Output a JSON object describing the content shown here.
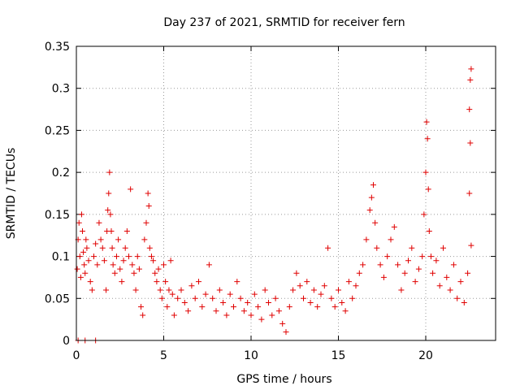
{
  "chart_data": {
    "type": "scatter",
    "title": "Day 237 of 2021, SRMTID for receiver fern",
    "xlabel": "GPS time / hours",
    "ylabel": "SRMTID / TECUs",
    "xlim": [
      0,
      24
    ],
    "ylim": [
      0,
      0.35
    ],
    "xticks": [
      0,
      5,
      10,
      15,
      20
    ],
    "xtick_labels": [
      "0",
      "5",
      "10",
      "15",
      "20"
    ],
    "yticks": [
      0,
      0.05,
      0.1,
      0.15,
      0.2,
      0.25,
      0.3,
      0.35
    ],
    "ytick_labels": [
      "0",
      "0.05",
      "0.1",
      "0.15",
      "0.2",
      "0.25",
      "0.3",
      "0.35"
    ],
    "grid": true,
    "marker": "plus",
    "color": "#e00000",
    "series": [
      {
        "name": "SRMTID",
        "points": [
          [
            0.1,
            0.0
          ],
          [
            0.5,
            0.0
          ],
          [
            1.1,
            0.0
          ],
          [
            0.05,
            0.085
          ],
          [
            0.1,
            0.12
          ],
          [
            0.15,
            0.14
          ],
          [
            0.2,
            0.1
          ],
          [
            0.25,
            0.075
          ],
          [
            0.3,
            0.15
          ],
          [
            0.35,
            0.13
          ],
          [
            0.4,
            0.105
          ],
          [
            0.45,
            0.09
          ],
          [
            0.5,
            0.08
          ],
          [
            0.55,
            0.12
          ],
          [
            0.6,
            0.11
          ],
          [
            0.7,
            0.095
          ],
          [
            0.8,
            0.07
          ],
          [
            0.9,
            0.06
          ],
          [
            1.0,
            0.1
          ],
          [
            1.1,
            0.115
          ],
          [
            1.2,
            0.09
          ],
          [
            1.3,
            0.14
          ],
          [
            1.4,
            0.12
          ],
          [
            1.5,
            0.11
          ],
          [
            1.6,
            0.095
          ],
          [
            1.7,
            0.06
          ],
          [
            1.75,
            0.13
          ],
          [
            1.8,
            0.155
          ],
          [
            1.85,
            0.175
          ],
          [
            1.9,
            0.2
          ],
          [
            1.95,
            0.15
          ],
          [
            2.0,
            0.13
          ],
          [
            2.05,
            0.11
          ],
          [
            2.1,
            0.09
          ],
          [
            2.2,
            0.08
          ],
          [
            2.3,
            0.1
          ],
          [
            2.4,
            0.12
          ],
          [
            2.5,
            0.085
          ],
          [
            2.6,
            0.07
          ],
          [
            2.7,
            0.095
          ],
          [
            2.8,
            0.11
          ],
          [
            2.9,
            0.13
          ],
          [
            3.0,
            0.1
          ],
          [
            3.1,
            0.18
          ],
          [
            3.2,
            0.09
          ],
          [
            3.3,
            0.08
          ],
          [
            3.4,
            0.06
          ],
          [
            3.5,
            0.1
          ],
          [
            3.6,
            0.085
          ],
          [
            3.7,
            0.04
          ],
          [
            3.8,
            0.03
          ],
          [
            3.9,
            0.12
          ],
          [
            4.0,
            0.14
          ],
          [
            4.1,
            0.175
          ],
          [
            4.15,
            0.16
          ],
          [
            4.2,
            0.11
          ],
          [
            4.3,
            0.1
          ],
          [
            4.4,
            0.095
          ],
          [
            4.5,
            0.08
          ],
          [
            4.6,
            0.07
          ],
          [
            4.7,
            0.085
          ],
          [
            4.8,
            0.06
          ],
          [
            4.9,
            0.05
          ],
          [
            5.0,
            0.09
          ],
          [
            5.1,
            0.07
          ],
          [
            5.2,
            0.04
          ],
          [
            5.3,
            0.06
          ],
          [
            5.4,
            0.095
          ],
          [
            5.5,
            0.055
          ],
          [
            5.6,
            0.03
          ],
          [
            5.8,
            0.05
          ],
          [
            6.0,
            0.06
          ],
          [
            6.2,
            0.045
          ],
          [
            6.4,
            0.035
          ],
          [
            6.6,
            0.065
          ],
          [
            6.8,
            0.05
          ],
          [
            7.0,
            0.07
          ],
          [
            7.2,
            0.04
          ],
          [
            7.4,
            0.055
          ],
          [
            7.6,
            0.09
          ],
          [
            7.8,
            0.05
          ],
          [
            8.0,
            0.035
          ],
          [
            8.2,
            0.06
          ],
          [
            8.4,
            0.045
          ],
          [
            8.6,
            0.03
          ],
          [
            8.8,
            0.055
          ],
          [
            9.0,
            0.04
          ],
          [
            9.2,
            0.07
          ],
          [
            9.4,
            0.05
          ],
          [
            9.6,
            0.035
          ],
          [
            9.8,
            0.045
          ],
          [
            10.0,
            0.03
          ],
          [
            10.2,
            0.055
          ],
          [
            10.4,
            0.04
          ],
          [
            10.6,
            0.025
          ],
          [
            10.8,
            0.06
          ],
          [
            11.0,
            0.045
          ],
          [
            11.2,
            0.03
          ],
          [
            11.4,
            0.05
          ],
          [
            11.6,
            0.035
          ],
          [
            11.8,
            0.02
          ],
          [
            12.0,
            0.01
          ],
          [
            12.2,
            0.04
          ],
          [
            12.4,
            0.06
          ],
          [
            12.6,
            0.08
          ],
          [
            12.8,
            0.065
          ],
          [
            13.0,
            0.05
          ],
          [
            13.2,
            0.07
          ],
          [
            13.4,
            0.045
          ],
          [
            13.6,
            0.06
          ],
          [
            13.8,
            0.04
          ],
          [
            14.0,
            0.055
          ],
          [
            14.2,
            0.065
          ],
          [
            14.4,
            0.11
          ],
          [
            14.6,
            0.05
          ],
          [
            14.8,
            0.04
          ],
          [
            15.0,
            0.06
          ],
          [
            15.2,
            0.045
          ],
          [
            15.4,
            0.035
          ],
          [
            15.6,
            0.07
          ],
          [
            15.8,
            0.05
          ],
          [
            16.0,
            0.065
          ],
          [
            16.2,
            0.08
          ],
          [
            16.4,
            0.09
          ],
          [
            16.6,
            0.12
          ],
          [
            16.8,
            0.155
          ],
          [
            16.9,
            0.17
          ],
          [
            17.0,
            0.185
          ],
          [
            17.1,
            0.14
          ],
          [
            17.2,
            0.11
          ],
          [
            17.4,
            0.09
          ],
          [
            17.6,
            0.075
          ],
          [
            17.8,
            0.1
          ],
          [
            18.0,
            0.12
          ],
          [
            18.2,
            0.135
          ],
          [
            18.4,
            0.09
          ],
          [
            18.6,
            0.06
          ],
          [
            18.8,
            0.08
          ],
          [
            19.0,
            0.095
          ],
          [
            19.2,
            0.11
          ],
          [
            19.4,
            0.07
          ],
          [
            19.6,
            0.085
          ],
          [
            19.8,
            0.1
          ],
          [
            19.9,
            0.15
          ],
          [
            20.0,
            0.2
          ],
          [
            20.05,
            0.26
          ],
          [
            20.1,
            0.24
          ],
          [
            20.15,
            0.18
          ],
          [
            20.2,
            0.13
          ],
          [
            20.3,
            0.1
          ],
          [
            20.4,
            0.08
          ],
          [
            20.6,
            0.095
          ],
          [
            20.8,
            0.065
          ],
          [
            21.0,
            0.11
          ],
          [
            21.2,
            0.075
          ],
          [
            21.4,
            0.06
          ],
          [
            21.6,
            0.09
          ],
          [
            21.8,
            0.05
          ],
          [
            22.0,
            0.07
          ],
          [
            22.2,
            0.045
          ],
          [
            22.4,
            0.08
          ],
          [
            22.5,
            0.175
          ],
          [
            22.55,
            0.235
          ],
          [
            22.6,
            0.113
          ],
          [
            22.5,
            0.275
          ],
          [
            22.55,
            0.31
          ],
          [
            22.6,
            0.323
          ]
        ]
      }
    ]
  }
}
